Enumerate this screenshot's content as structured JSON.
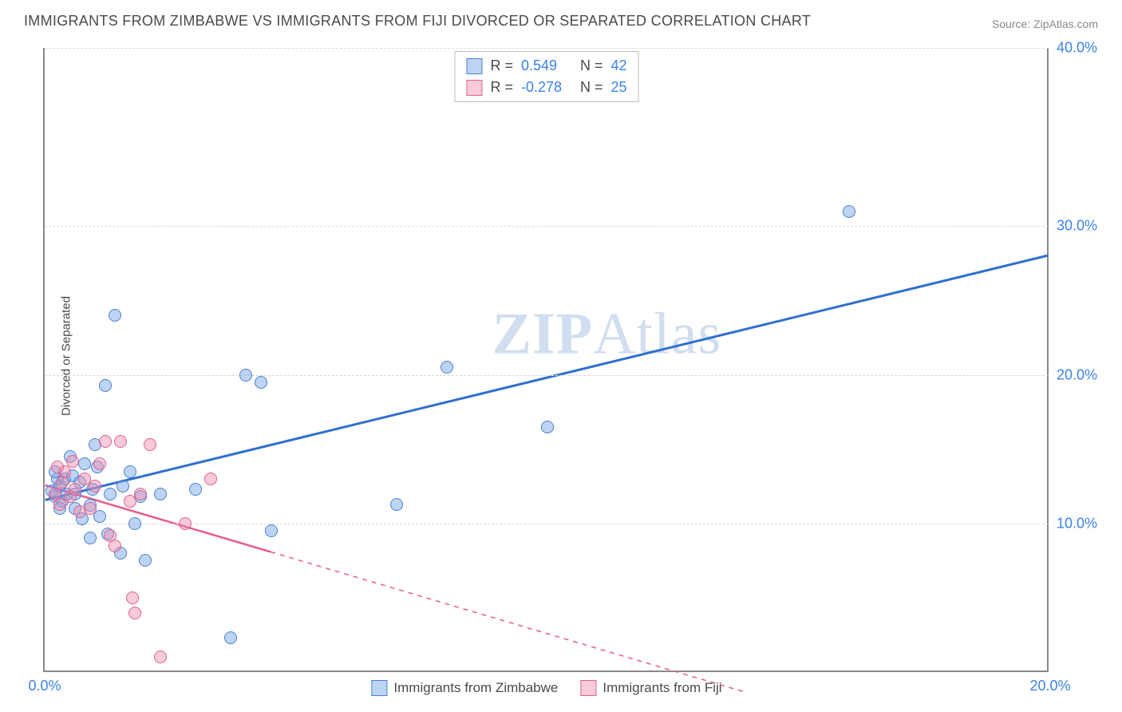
{
  "title": "IMMIGRANTS FROM ZIMBABWE VS IMMIGRANTS FROM FIJI DIVORCED OR SEPARATED CORRELATION CHART",
  "source": "Source: ZipAtlas.com",
  "ylabel": "Divorced or Separated",
  "watermark_a": "ZIP",
  "watermark_b": "Atlas",
  "chart": {
    "type": "scatter",
    "xlim": [
      0,
      20
    ],
    "ylim": [
      0,
      42
    ],
    "grid_y": [
      10,
      20,
      30,
      42
    ],
    "ytick_labels": [
      "10.0%",
      "20.0%",
      "30.0%",
      "40.0%"
    ],
    "xticks": [
      0,
      20
    ],
    "xtick_labels": [
      "0.0%",
      "20.0%"
    ],
    "grid_color": "#d8d8d8",
    "axis_color": "#888888",
    "tick_color": "#3b82e6",
    "marker_radius": 8,
    "series": [
      {
        "name": "Immigrants from Zimbabwe",
        "color_fill": "rgba(110,160,230,0.45)",
        "color_stroke": "#4a80d0",
        "line_color": "#2f6fd0",
        "R": "0.549",
        "N": "42",
        "trend": {
          "x1": 0,
          "y1": 11.5,
          "x2": 20,
          "y2": 28,
          "dash_after_x": null
        },
        "points": [
          [
            0.15,
            12.2
          ],
          [
            0.2,
            11.8
          ],
          [
            0.25,
            13.0
          ],
          [
            0.3,
            12.5
          ],
          [
            0.35,
            11.5
          ],
          [
            0.4,
            13.0
          ],
          [
            0.45,
            12.0
          ],
          [
            0.5,
            14.5
          ],
          [
            0.55,
            13.2
          ],
          [
            0.6,
            11.0
          ],
          [
            0.7,
            12.8
          ],
          [
            0.75,
            10.3
          ],
          [
            0.8,
            14.0
          ],
          [
            0.9,
            11.2
          ],
          [
            0.95,
            12.3
          ],
          [
            1.0,
            15.3
          ],
          [
            1.05,
            13.8
          ],
          [
            1.1,
            10.5
          ],
          [
            1.2,
            19.3
          ],
          [
            1.25,
            9.3
          ],
          [
            1.3,
            12.0
          ],
          [
            1.4,
            24.0
          ],
          [
            1.5,
            8.0
          ],
          [
            1.55,
            12.5
          ],
          [
            1.7,
            13.5
          ],
          [
            1.8,
            10.0
          ],
          [
            1.9,
            11.8
          ],
          [
            2.0,
            7.5
          ],
          [
            2.3,
            12.0
          ],
          [
            3.0,
            12.3
          ],
          [
            3.7,
            2.3
          ],
          [
            4.0,
            20.0
          ],
          [
            4.3,
            19.5
          ],
          [
            4.5,
            9.5
          ],
          [
            7.0,
            11.3
          ],
          [
            8.0,
            20.5
          ],
          [
            10.0,
            16.5
          ],
          [
            16.0,
            31.0
          ],
          [
            0.2,
            13.5
          ],
          [
            0.6,
            12.0
          ],
          [
            0.3,
            11.0
          ],
          [
            0.9,
            9.0
          ]
        ]
      },
      {
        "name": "Immigrants from Fiji",
        "color_fill": "rgba(240,140,170,0.45)",
        "color_stroke": "#e06090",
        "line_color": "#e85a8a",
        "R": "-0.278",
        "N": "25",
        "trend": {
          "x1": 0,
          "y1": 12.5,
          "x2": 14,
          "y2": -1.5,
          "dash_after_x": 4.5
        },
        "points": [
          [
            0.2,
            12.0
          ],
          [
            0.3,
            11.3
          ],
          [
            0.35,
            12.8
          ],
          [
            0.4,
            13.5
          ],
          [
            0.5,
            11.8
          ],
          [
            0.55,
            14.2
          ],
          [
            0.6,
            12.3
          ],
          [
            0.7,
            10.8
          ],
          [
            0.8,
            13.0
          ],
          [
            0.9,
            11.0
          ],
          [
            1.0,
            12.5
          ],
          [
            1.1,
            14.0
          ],
          [
            1.2,
            15.5
          ],
          [
            1.3,
            9.2
          ],
          [
            1.4,
            8.5
          ],
          [
            1.5,
            15.5
          ],
          [
            1.7,
            11.5
          ],
          [
            1.75,
            5.0
          ],
          [
            1.8,
            4.0
          ],
          [
            1.9,
            12.0
          ],
          [
            2.1,
            15.3
          ],
          [
            2.3,
            1.0
          ],
          [
            2.8,
            10.0
          ],
          [
            3.3,
            13.0
          ],
          [
            0.25,
            13.8
          ]
        ]
      }
    ]
  },
  "legend_bottom": [
    {
      "label": "Immigrants from Zimbabwe",
      "swatch": "blue"
    },
    {
      "label": "Immigrants from Fiji",
      "swatch": "pink"
    }
  ]
}
